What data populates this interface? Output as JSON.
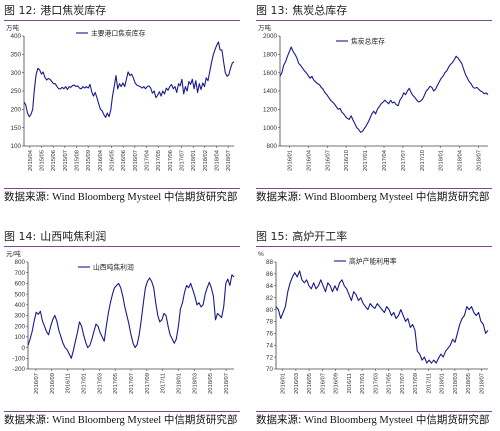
{
  "panels": [
    {
      "id": "p12",
      "figure_label": "图 12:",
      "title": "港口焦炭库存",
      "source_label": "数据来源:",
      "source_providers": "Wind Bloomberg Mysteel",
      "source_org": "中信期货研究部"
    },
    {
      "id": "p13",
      "figure_label": "图 13:",
      "title": "焦炭总库存",
      "source_label": "数据来源:",
      "source_providers": "Wind Bloomberg Mysteel",
      "source_org": "中信期货研究部"
    },
    {
      "id": "p14",
      "figure_label": "图 14:",
      "title": "山西吨焦利润",
      "source_label": "数据来源:",
      "source_providers": "Wind Bloomberg Mysteel",
      "source_org": "中信期货研究部"
    },
    {
      "id": "p15",
      "figure_label": "图 15:",
      "title": "高炉开工率",
      "source_label": "数据来源:",
      "source_providers": "Wind Bloomberg Mysteel",
      "source_org": "中信期货研究部"
    }
  ],
  "chart_data": [
    {
      "type": "line",
      "unit_label": "万吨",
      "legend": "主要港口焦炭库存",
      "ylim": [
        100,
        400
      ],
      "yticks": [
        100,
        150,
        200,
        250,
        300,
        350,
        400
      ],
      "xticks": [
        "2015/04",
        "2015/05",
        "2015/06",
        "2015/07",
        "2015/08",
        "2015/09",
        "2016/04",
        "2016/05",
        "2016/06",
        "2016/07",
        "2017/04",
        "2017/05",
        "2017/06",
        "2017/07",
        "2018/01",
        "2018/02",
        "2018/04",
        "2018/07"
      ],
      "color": "#1a1a8c",
      "values": [
        220,
        212,
        190,
        180,
        186,
        200,
        255,
        295,
        312,
        308,
        296,
        302,
        288,
        280,
        284,
        282,
        276,
        270,
        270,
        262,
        256,
        256,
        260,
        256,
        262,
        254,
        262,
        260,
        265,
        266,
        262,
        264,
        258,
        256,
        262,
        258,
        262,
        258,
        268,
        248,
        236,
        246,
        232,
        216,
        200,
        196,
        186,
        178,
        190,
        180,
        198,
        236,
        262,
        292,
        256,
        270,
        262,
        272,
        262,
        282,
        302,
        292,
        296,
        286,
        272,
        266,
        264,
        262,
        258,
        262,
        256,
        262,
        264,
        258,
        244,
        250,
        232,
        238,
        248,
        236,
        250,
        242,
        258,
        252,
        262,
        268,
        256,
        262,
        246,
        270,
        264,
        282,
        242,
        262,
        250,
        276,
        268,
        282,
        256,
        278,
        246,
        270,
        254,
        272,
        262,
        286,
        278,
        302,
        326,
        348,
        362,
        374,
        384,
        362,
        362,
        330,
        300,
        290,
        294,
        312,
        326,
        330
      ]
    },
    {
      "type": "line",
      "unit_label": "万吨",
      "legend": "焦炭总库存",
      "ylim": [
        800,
        2000
      ],
      "yticks": [
        800,
        1000,
        1200,
        1400,
        1600,
        1800,
        2000
      ],
      "xticks": [
        "2016/01",
        "2016/04",
        "2016/07",
        "2016/10",
        "2017/01",
        "2017/04",
        "2017/07",
        "2017/10",
        "2018/01",
        "2018/04",
        "2018/07"
      ],
      "color": "#1a1a8c",
      "values": [
        1560,
        1600,
        1680,
        1720,
        1780,
        1830,
        1880,
        1830,
        1800,
        1760,
        1700,
        1680,
        1650,
        1620,
        1600,
        1570,
        1540,
        1560,
        1520,
        1500,
        1480,
        1470,
        1440,
        1420,
        1380,
        1360,
        1330,
        1300,
        1280,
        1260,
        1230,
        1200,
        1210,
        1170,
        1150,
        1120,
        1100,
        1090,
        1130,
        1080,
        1040,
        1000,
        980,
        950,
        960,
        990,
        1020,
        1060,
        1100,
        1150,
        1180,
        1150,
        1200,
        1230,
        1260,
        1280,
        1300,
        1280,
        1260,
        1300,
        1270,
        1280,
        1250,
        1240,
        1300,
        1330,
        1380,
        1360,
        1400,
        1430,
        1380,
        1350,
        1330,
        1300,
        1280,
        1290,
        1310,
        1350,
        1400,
        1420,
        1450,
        1440,
        1400,
        1420,
        1460,
        1500,
        1540,
        1560,
        1600,
        1620,
        1660,
        1690,
        1710,
        1740,
        1780,
        1760,
        1730,
        1700,
        1640,
        1580,
        1540,
        1500,
        1480,
        1440,
        1430,
        1440,
        1420,
        1400,
        1390,
        1370,
        1380,
        1360
      ]
    },
    {
      "type": "line",
      "unit_label": "元/吨",
      "legend": "山西吨焦利润",
      "ylim": [
        -200,
        800
      ],
      "yticks": [
        -200,
        -100,
        0,
        100,
        200,
        300,
        400,
        500,
        600,
        700,
        800
      ],
      "xticks": [
        "2016/07",
        "2016/09",
        "2016/11",
        "2017/01",
        "2017/03",
        "2017/05",
        "2017/07",
        "2017/09",
        "2017/11",
        "2018/01",
        "2018/03",
        "2018/05",
        "2018/07"
      ],
      "color": "#1a1a8c",
      "values": [
        20,
        80,
        150,
        250,
        330,
        310,
        340,
        250,
        200,
        150,
        120,
        200,
        260,
        300,
        250,
        160,
        100,
        40,
        0,
        -20,
        -60,
        -100,
        -30,
        60,
        140,
        240,
        200,
        120,
        50,
        0,
        20,
        80,
        150,
        220,
        200,
        140,
        100,
        60,
        200,
        320,
        420,
        500,
        560,
        580,
        600,
        560,
        480,
        380,
        300,
        220,
        120,
        40,
        0,
        30,
        120,
        260,
        420,
        560,
        620,
        650,
        620,
        560,
        420,
        300,
        240,
        260,
        320,
        300,
        200,
        120,
        80,
        40,
        80,
        200,
        360,
        420,
        520,
        580,
        560,
        600,
        540,
        480,
        400,
        420,
        380,
        400,
        500,
        560,
        610,
        560,
        480,
        260,
        320,
        300,
        280,
        380,
        600,
        640,
        580,
        680,
        660
      ]
    },
    {
      "type": "line",
      "unit_label": "%",
      "legend": "高炉产能利用率",
      "ylim": [
        70,
        88
      ],
      "yticks": [
        70,
        72,
        74,
        76,
        78,
        80,
        82,
        84,
        86,
        88
      ],
      "xticks": [
        "2016/01",
        "2016/03",
        "2016/05",
        "2016/07",
        "2016/09",
        "2016/11",
        "2017/01",
        "2017/03",
        "2017/05",
        "2017/07",
        "2017/09",
        "2017/11",
        "2018/01",
        "2018/03",
        "2018/05",
        "2018/07"
      ],
      "color": "#1a1a8c",
      "values": [
        80.5,
        80,
        78.5,
        79.5,
        80.5,
        83,
        84.5,
        85.5,
        86.2,
        85.5,
        86.5,
        85,
        84.5,
        85,
        84,
        83.5,
        84.5,
        83.5,
        84,
        85,
        84,
        83,
        84.5,
        84,
        83,
        84,
        83.2,
        84.5,
        85,
        84,
        83.5,
        82.5,
        81.5,
        83,
        82.5,
        81.5,
        82,
        81,
        80.5,
        80,
        81,
        80.5,
        80.2,
        81,
        80.5,
        80,
        79.5,
        80.5,
        80,
        79,
        79.5,
        78.5,
        79,
        80,
        79,
        78,
        78.5,
        77,
        77.5,
        76.5,
        73,
        72.5,
        71.5,
        72,
        71,
        71.5,
        71,
        71.5,
        71,
        71.8,
        72.5,
        72,
        73,
        73.5,
        74,
        75,
        74.5,
        76,
        77.5,
        78.5,
        79,
        80.5,
        80,
        80.5,
        79.5,
        79,
        79.5,
        78,
        77.5,
        76,
        76.5
      ]
    }
  ]
}
